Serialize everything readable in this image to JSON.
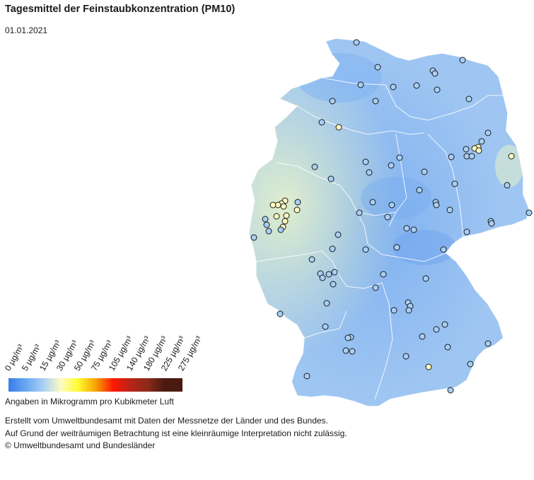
{
  "title": "Tagesmittel der Feinstaubkonzentration (PM10)",
  "date": "01.01.2021",
  "legend": {
    "tick_labels": [
      "0 µg/m³",
      "5 µg/m³",
      "15 µg/m³",
      "30 µg/m³",
      "50 µg/m³",
      "75 µg/m³",
      "105 µg/m³",
      "140 µg/m³",
      "180 µg/m³",
      "225 µg/m³",
      "275 µg/m³"
    ],
    "colors": [
      "#3a7de8",
      "#6aa8f2",
      "#a8cff5",
      "#fdfbc2",
      "#fffb33",
      "#f7a300",
      "#ff1800",
      "#b8241a",
      "#8a2a18",
      "#4a1a10"
    ],
    "unit_note": "Angaben in Mikrogramm pro Kubikmeter Luft"
  },
  "map": {
    "region": "Deutschland",
    "fill_color": "#9fc6f2",
    "station_colors": {
      "low": "#a8cff5",
      "medium": "#fdfbc2"
    }
  },
  "footer": {
    "line1": "Erstellt vom Umweltbundesamt mit Daten der Messnetze der Länder und des Bundes.",
    "line2": "Auf Grund der weiträumigen Betrachtung ist eine kleinräumige Interpretation nicht zulässig.",
    "line3": "© Umweltbundesamt und Bundesländer"
  }
}
